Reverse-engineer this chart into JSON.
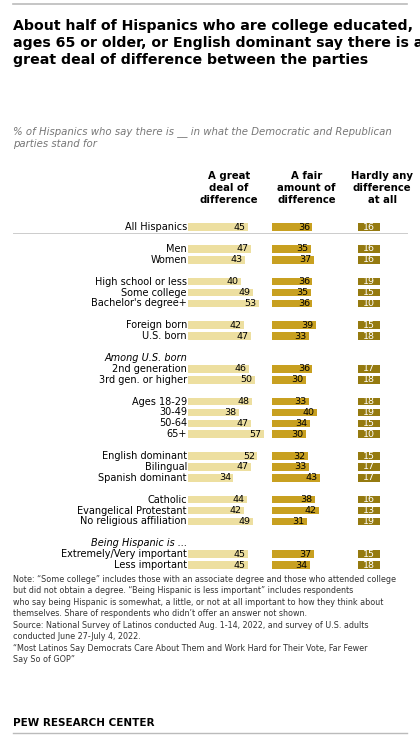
{
  "title": "About half of Hispanics who are college educated,\nages 65 or older, or English dominant say there is a\ngreat deal of difference between the parties",
  "subtitle": "% of Hispanics who say there is __ in what the Democratic and Republican\nparties stand for",
  "col_headers": [
    "A great\ndeal of\ndifference",
    "A fair\namount of\ndifference",
    "Hardly any\ndifference\nat all"
  ],
  "rows": [
    {
      "label": "All Hispanics",
      "vals": [
        45,
        36,
        16
      ],
      "italic": false
    },
    {
      "label": "",
      "vals": null,
      "italic": false
    },
    {
      "label": "Men",
      "vals": [
        47,
        35,
        16
      ],
      "italic": false
    },
    {
      "label": "Women",
      "vals": [
        43,
        37,
        16
      ],
      "italic": false
    },
    {
      "label": "",
      "vals": null,
      "italic": false
    },
    {
      "label": "High school or less",
      "vals": [
        40,
        36,
        19
      ],
      "italic": false
    },
    {
      "label": "Some college",
      "vals": [
        49,
        35,
        15
      ],
      "italic": false
    },
    {
      "label": "Bachelor's degree+",
      "vals": [
        53,
        36,
        10
      ],
      "italic": false
    },
    {
      "label": "",
      "vals": null,
      "italic": false
    },
    {
      "label": "Foreign born",
      "vals": [
        42,
        39,
        15
      ],
      "italic": false
    },
    {
      "label": "U.S. born",
      "vals": [
        47,
        33,
        18
      ],
      "italic": false
    },
    {
      "label": "",
      "vals": null,
      "italic": false
    },
    {
      "label": "Among U.S. born",
      "vals": null,
      "italic": true
    },
    {
      "label": "2nd generation",
      "vals": [
        46,
        36,
        17
      ],
      "italic": false
    },
    {
      "label": "3rd gen. or higher",
      "vals": [
        50,
        30,
        18
      ],
      "italic": false
    },
    {
      "label": "",
      "vals": null,
      "italic": false
    },
    {
      "label": "Ages 18-29",
      "vals": [
        48,
        33,
        18
      ],
      "italic": false
    },
    {
      "label": "30-49",
      "vals": [
        38,
        40,
        19
      ],
      "italic": false
    },
    {
      "label": "50-64",
      "vals": [
        47,
        34,
        15
      ],
      "italic": false
    },
    {
      "label": "65+",
      "vals": [
        57,
        30,
        10
      ],
      "italic": false
    },
    {
      "label": "",
      "vals": null,
      "italic": false
    },
    {
      "label": "English dominant",
      "vals": [
        52,
        32,
        15
      ],
      "italic": false
    },
    {
      "label": "Bilingual",
      "vals": [
        47,
        33,
        17
      ],
      "italic": false
    },
    {
      "label": "Spanish dominant",
      "vals": [
        34,
        43,
        17
      ],
      "italic": false
    },
    {
      "label": "",
      "vals": null,
      "italic": false
    },
    {
      "label": "Catholic",
      "vals": [
        44,
        38,
        16
      ],
      "italic": false
    },
    {
      "label": "Evangelical Protestant",
      "vals": [
        42,
        42,
        13
      ],
      "italic": false
    },
    {
      "label": "No religious affiliation",
      "vals": [
        49,
        31,
        19
      ],
      "italic": false
    },
    {
      "label": "",
      "vals": null,
      "italic": false
    },
    {
      "label": "Being Hispanic is ...",
      "vals": null,
      "italic": true
    },
    {
      "label": "Extremely/Very important",
      "vals": [
        45,
        37,
        15
      ],
      "italic": false
    },
    {
      "label": "Less important",
      "vals": [
        45,
        34,
        18
      ],
      "italic": false
    }
  ],
  "color_light": "#eddfa0",
  "color_mid": "#c8a020",
  "color_dark": "#957a10",
  "note_text": "Note: “Some college” includes those with an associate degree and those who attended college\nbut did not obtain a degree. “Being Hispanic is less important” includes respondents\nwho say being Hispanic is somewhat, a little, or not at all important to how they think about\nthemselves. Share of respondents who didn’t offer an answer not shown.\nSource: National Survey of Latinos conducted Aug. 1-14, 2022, and survey of U.S. adults\nconducted June 27-July 4, 2022.\n“Most Latinos Say Democrats Care About Them and Work Hard for Their Vote, Far Fewer\nSay So of GOP”",
  "footer": "Pew Research Center"
}
